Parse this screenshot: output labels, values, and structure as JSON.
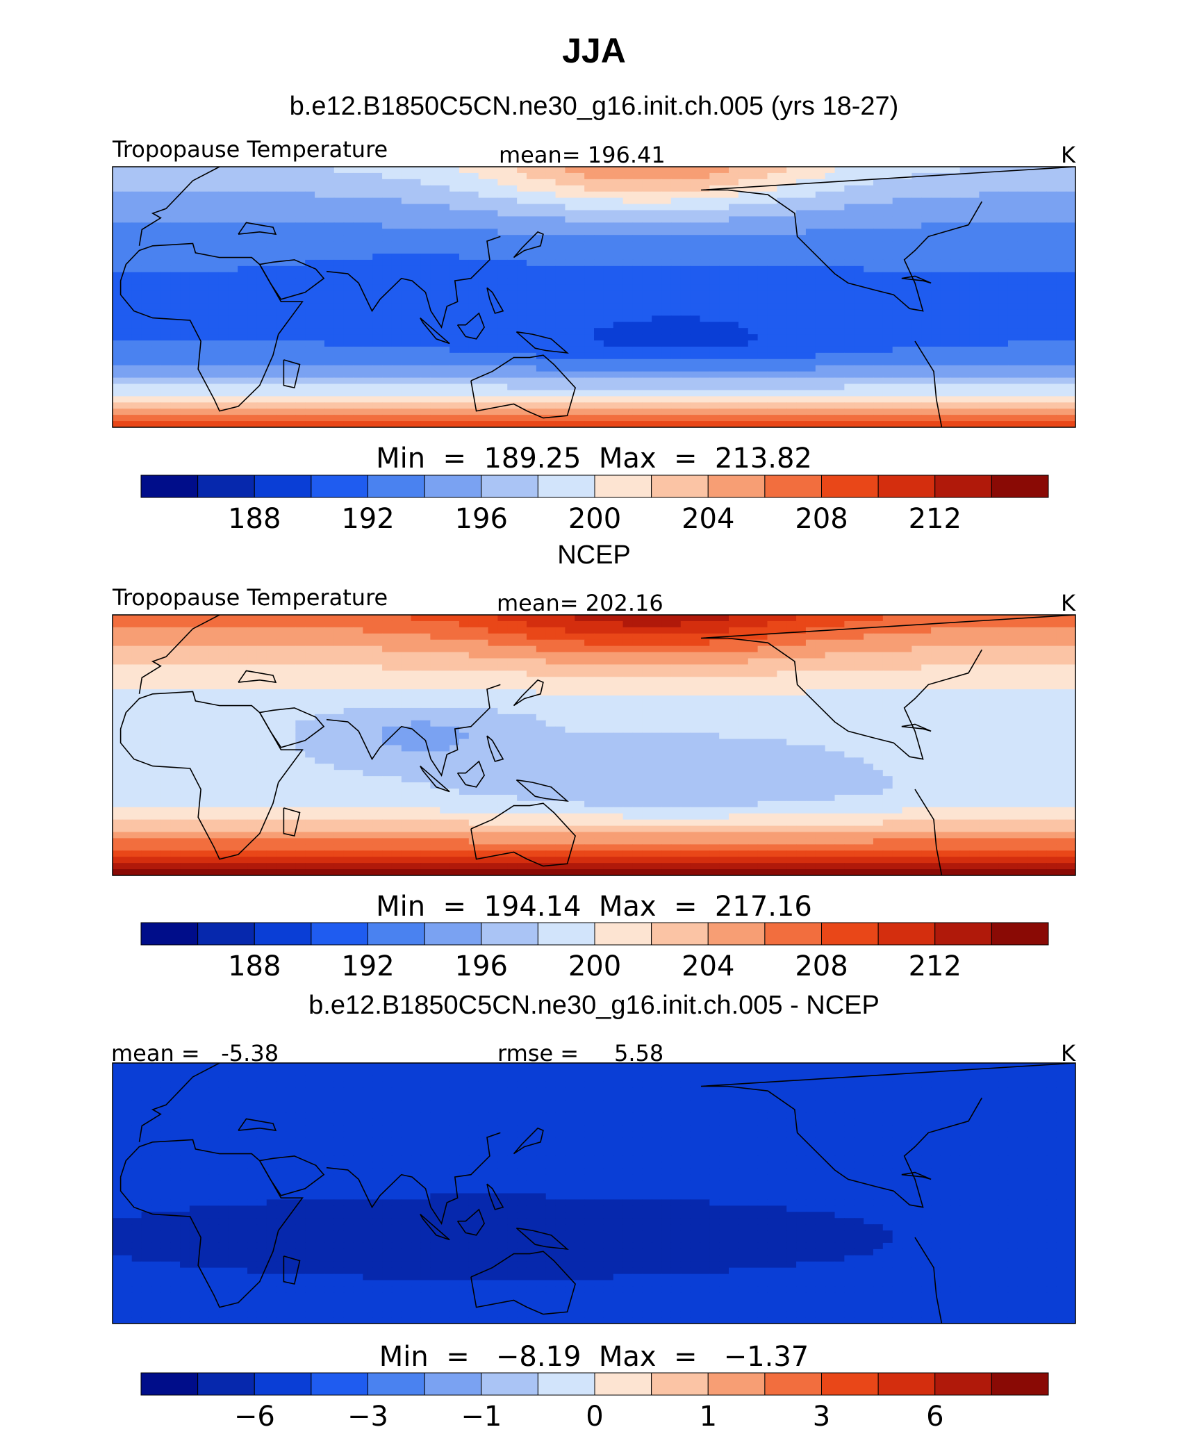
{
  "figure_title": "JJA",
  "chart_data": [
    {
      "type": "heatmap",
      "title": "b.e12.B1850C5CN.ne30_g16.init.ch.005 (yrs 18-27)",
      "left_label": "Tropopause Temperature",
      "center_label": "mean=  196.41",
      "units": "K",
      "minmax_label": "Min  =  189.25  Max  =  213.82",
      "stats": {
        "mean": 196.41,
        "min": 189.25,
        "max": 213.82
      },
      "colorbar": {
        "colors": [
          "#000d8a",
          "#0628ad",
          "#0a3ed6",
          "#1f5cf0",
          "#4a82f0",
          "#7aa2f2",
          "#aac4f5",
          "#d2e4fb",
          "#fde4d2",
          "#fbc4a5",
          "#f79e74",
          "#f26e3e",
          "#e94718",
          "#d42e0e",
          "#b0190a",
          "#8a0a05"
        ],
        "tick_labels": [
          "188",
          "192",
          "196",
          "200",
          "204",
          "208",
          "212"
        ]
      },
      "field": {
        "base": 196,
        "equatorial": 192,
        "south_gradient": 17,
        "north_gradient": 6,
        "pacific_min": -2.5,
        "asia_min": -1.5,
        "north_warm_pool": 8
      }
    },
    {
      "type": "heatmap",
      "title": "NCEP",
      "left_label": "Tropopause Temperature",
      "center_label": "mean=  202.16",
      "units": "K",
      "minmax_label": "Min  =  194.14  Max  =  217.16",
      "stats": {
        "mean": 202.16,
        "min": 194.14,
        "max": 217.16
      },
      "colorbar": {
        "colors": [
          "#000d8a",
          "#0628ad",
          "#0a3ed6",
          "#1f5cf0",
          "#4a82f0",
          "#7aa2f2",
          "#aac4f5",
          "#d2e4fb",
          "#fde4d2",
          "#fbc4a5",
          "#f79e74",
          "#f26e3e",
          "#e94718",
          "#d42e0e",
          "#b0190a",
          "#8a0a05"
        ],
        "tick_labels": [
          "188",
          "192",
          "196",
          "200",
          "204",
          "208",
          "212"
        ]
      },
      "field": {
        "base": 199,
        "equatorial": 198.5,
        "south_gradient": 17,
        "north_gradient": 9,
        "pacific_min": -2.5,
        "asia_min": -3,
        "north_warm_pool": 6
      }
    },
    {
      "type": "heatmap",
      "title": "b.e12.B1850C5CN.ne30_g16.init.ch.005 - NCEP",
      "left_label": "mean =   -5.38",
      "center_label": "rmse =     5.58",
      "units": "K",
      "minmax_label": "Min  =   −8.19  Max  =   −1.37",
      "stats": {
        "mean": -5.38,
        "rmse": 5.58,
        "min": -8.19,
        "max": -1.37
      },
      "colorbar": {
        "colors": [
          "#000d8a",
          "#0628ad",
          "#0a3ed6",
          "#1f5cf0",
          "#4a82f0",
          "#7aa2f2",
          "#aac4f5",
          "#d2e4fb",
          "#fde4d2",
          "#fbc4a5",
          "#f79e74",
          "#f26e3e",
          "#e94718",
          "#d42e0e",
          "#b0190a",
          "#8a0a05"
        ],
        "tick_labels": [
          "−6",
          "−3",
          "−1",
          "0",
          "1",
          "3",
          "6"
        ]
      },
      "field": {
        "base": -5.2,
        "tropical_min": -1.8,
        "north_edge": 1.2
      }
    }
  ]
}
